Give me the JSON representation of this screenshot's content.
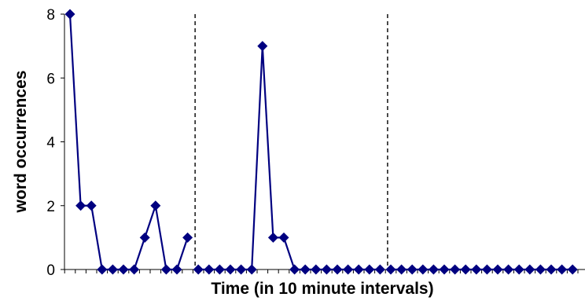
{
  "chart_data": {
    "type": "line",
    "title": "",
    "xlabel": "Time (in 10 minute intervals)",
    "ylabel": "word occurrences",
    "ylim": [
      0,
      8
    ],
    "yticks": [
      "0",
      "2",
      "4",
      "6",
      "8"
    ],
    "x_count": 48,
    "grid": false,
    "legend": "none",
    "series": [
      {
        "color": "#000080",
        "marker": "diamond",
        "segments": [
          {
            "start_index": 0,
            "values": [
              8,
              2,
              2,
              0,
              0,
              0,
              0,
              1,
              2,
              0,
              0,
              1
            ]
          },
          {
            "start_index": 12,
            "values": [
              0,
              0,
              0,
              0,
              0,
              0,
              7,
              1,
              1,
              0,
              0,
              0,
              0,
              0,
              0,
              0,
              0,
              0
            ]
          },
          {
            "start_index": 30,
            "values": [
              0,
              0,
              0,
              0,
              0,
              0,
              0,
              0,
              0,
              0,
              0,
              0,
              0,
              0,
              0,
              0,
              0,
              0
            ]
          }
        ]
      }
    ],
    "vertical_dividers": [
      "after interval 12",
      "after interval 30"
    ],
    "divider_style": "dashed"
  }
}
